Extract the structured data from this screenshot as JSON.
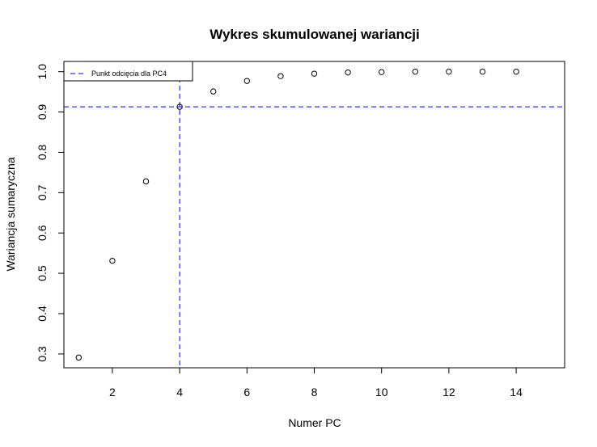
{
  "chart_data": {
    "type": "scatter",
    "title": "Wykres skumulowanej wariancji",
    "xlabel": "Numer PC",
    "ylabel": "Wariancja sumaryczna",
    "xlim": [
      0.56,
      15.44
    ],
    "ylim": [
      0.2657,
      1.0254
    ],
    "xticks": [
      2,
      4,
      6,
      8,
      10,
      12,
      14
    ],
    "xtick_labels": [
      "2",
      "4",
      "6",
      "8",
      "10",
      "12",
      "14"
    ],
    "yticks": [
      0.3,
      0.4,
      0.5,
      0.6,
      0.7,
      0.8,
      0.9,
      1.0
    ],
    "ytick_labels": [
      "0.3",
      "0.4",
      "0.5",
      "0.6",
      "0.7",
      "0.8",
      "0.9",
      "1.0"
    ],
    "series": [
      {
        "x": [
          1,
          2,
          3,
          4,
          5,
          6,
          7,
          8,
          9,
          10,
          11,
          12,
          13,
          14
        ],
        "y": [
          0.291,
          0.531,
          0.728,
          0.913,
          0.951,
          0.977,
          0.989,
          0.995,
          0.998,
          0.999,
          1.0,
          1.0,
          1.0,
          1.0
        ],
        "marker": "open-circle",
        "color": "#000000"
      }
    ],
    "reference_lines": {
      "vertical_x": 4,
      "horizontal_y": 0.913,
      "color": "#0000ff",
      "style": "dashed"
    },
    "legend": {
      "position": "top-left",
      "entries": [
        {
          "label": "Punkt odcięcia dla PC4",
          "color": "#0000ff",
          "style": "dashed"
        }
      ]
    },
    "grid": false
  }
}
